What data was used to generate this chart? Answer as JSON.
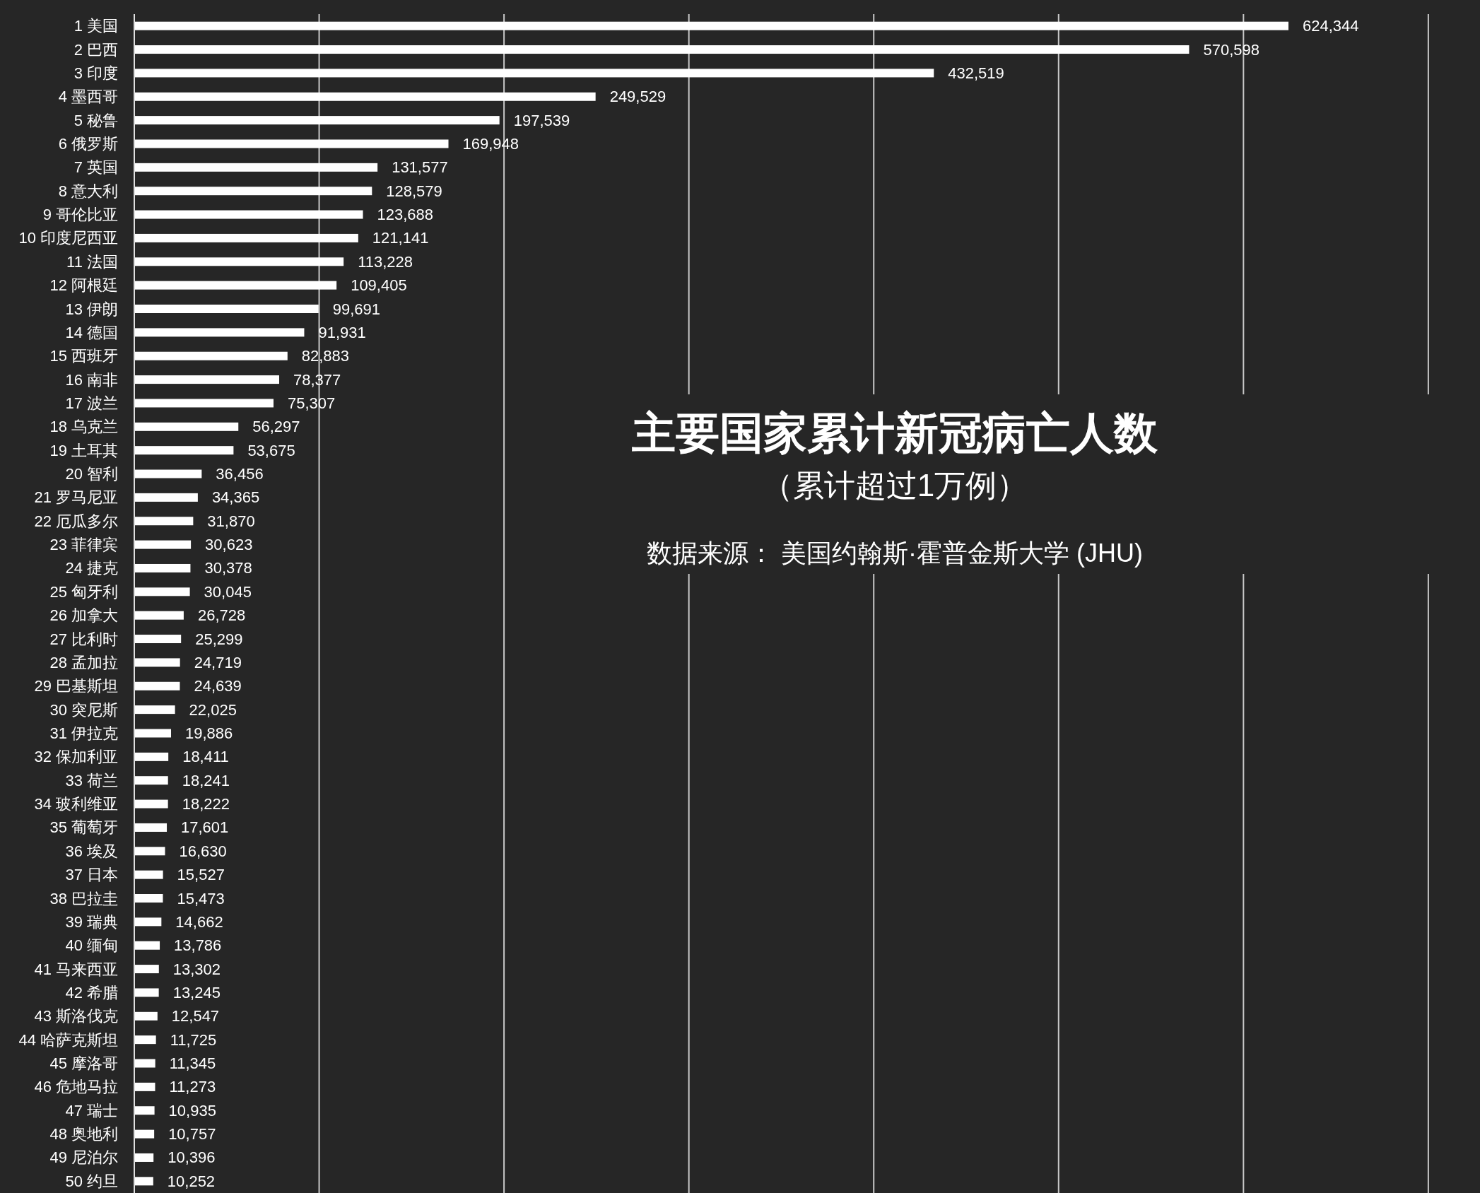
{
  "chart_data": {
    "type": "bar",
    "orientation": "horizontal",
    "title": "主要国家累计新冠病亡人数",
    "subtitle": "（累计超过1万例）",
    "annotations": [
      "数据来源： 美国约翰斯·霍普金斯大学 (JHU)"
    ],
    "categories": [
      "1 美国",
      "2 巴西",
      "3 印度",
      "4 墨西哥",
      "5 秘鲁",
      "6 俄罗斯",
      "7 英国",
      "8 意大利",
      "9 哥伦比亚",
      "10 印度尼西亚",
      "11 法国",
      "12 阿根廷",
      "13 伊朗",
      "14 德国",
      "15 西班牙",
      "16 南非",
      "17 波兰",
      "18 乌克兰",
      "19 土耳其",
      "20 智利",
      "21 罗马尼亚",
      "22 厄瓜多尔",
      "23 菲律宾",
      "24 捷克",
      "25 匈牙利",
      "26 加拿大",
      "27 比利时",
      "28 孟加拉",
      "29 巴基斯坦",
      "30 突尼斯",
      "31 伊拉克",
      "32 保加利亚",
      "33 荷兰",
      "34 玻利维亚",
      "35 葡萄牙",
      "36 埃及",
      "37 日本",
      "38 巴拉圭",
      "39 瑞典",
      "40 缅甸",
      "41 马来西亚",
      "42 希腊",
      "43 斯洛伐克",
      "44 哈萨克斯坦",
      "45 摩洛哥",
      "46 危地马拉",
      "47 瑞士",
      "48 奥地利",
      "49 尼泊尔",
      "50 约旦"
    ],
    "values": [
      624344,
      570598,
      432519,
      249529,
      197539,
      169948,
      131577,
      128579,
      123688,
      121141,
      113228,
      109405,
      99691,
      91931,
      82883,
      78377,
      75307,
      56297,
      53675,
      36456,
      34365,
      31870,
      30623,
      30378,
      30045,
      26728,
      25299,
      24719,
      24639,
      22025,
      19886,
      18411,
      18241,
      18222,
      17601,
      16630,
      15527,
      15473,
      14662,
      13786,
      13302,
      13245,
      12547,
      11725,
      11345,
      11273,
      10935,
      10757,
      10396,
      10252
    ],
    "value_labels": [
      "624,344",
      "570,598",
      "432,519",
      "249,529",
      "197,539",
      "169,948",
      "131,577",
      "128,579",
      "123,688",
      "121,141",
      "113,228",
      "109,405",
      "99,691",
      "91,931",
      "82,883",
      "78,377",
      "75,307",
      "56,297",
      "53,675",
      "36,456",
      "34,365",
      "31,870",
      "30,623",
      "30,378",
      "30,045",
      "26,728",
      "25,299",
      "24,719",
      "24,639",
      "22,025",
      "19,886",
      "18,411",
      "18,241",
      "18,222",
      "17,601",
      "16,630",
      "15,527",
      "15,473",
      "14,662",
      "13,786",
      "13,302",
      "13,245",
      "12,547",
      "11,725",
      "11,345",
      "11,273",
      "10,935",
      "10,757",
      "10,396",
      "10,252"
    ],
    "color": "#ffffff",
    "ref_lines": [
      {
        "axis": "x",
        "value": 100000,
        "color": "#c8c8c8"
      },
      {
        "axis": "x",
        "value": 200000,
        "color": "#c8c8c8"
      },
      {
        "axis": "x",
        "value": 300000,
        "color": "#c8c8c8"
      },
      {
        "axis": "x",
        "value": 400000,
        "color": "#c8c8c8"
      },
      {
        "axis": "x",
        "value": 500000,
        "color": "#c8c8c8"
      },
      {
        "axis": "x",
        "value": 600000,
        "color": "#c8c8c8"
      },
      {
        "axis": "x",
        "value": 700000,
        "color": "#c8c8c8"
      }
    ]
  }
}
